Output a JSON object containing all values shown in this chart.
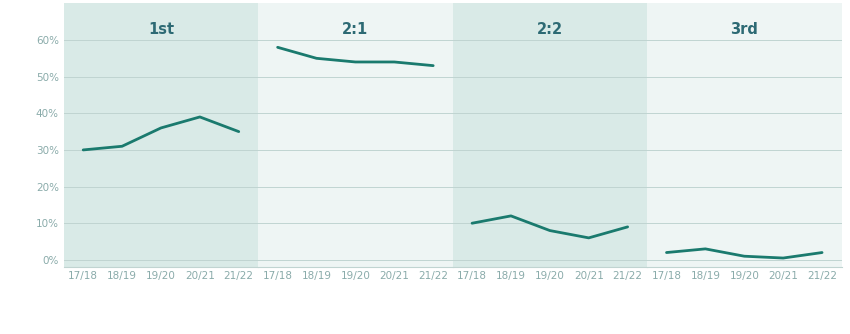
{
  "years": [
    "17/18",
    "18/19",
    "19/20",
    "20/21",
    "21/22"
  ],
  "panels": [
    {
      "label": "1st",
      "values": [
        30,
        31,
        36,
        39,
        35
      ],
      "bg_color": "#d9eae7"
    },
    {
      "label": "2:1",
      "values": [
        58,
        55,
        54,
        54,
        53
      ],
      "bg_color": "#eef5f4"
    },
    {
      "label": "2:2",
      "values": [
        10,
        12,
        8,
        6,
        9
      ],
      "bg_color": "#d9eae7"
    },
    {
      "label": "3rd",
      "values": [
        2,
        3,
        1,
        0.5,
        2
      ],
      "bg_color": "#eef5f4"
    }
  ],
  "line_color": "#1a7a6e",
  "line_width": 2.0,
  "yticks": [
    0,
    10,
    20,
    30,
    40,
    50,
    60
  ],
  "ylim": [
    -2,
    70
  ],
  "grid_color": "#c0d4d1",
  "label_color": "#2d6a74",
  "tick_color": "#8aabaa",
  "bg_outer": "#ffffff",
  "title_fontsize": 10.5,
  "tick_fontsize": 7.5
}
